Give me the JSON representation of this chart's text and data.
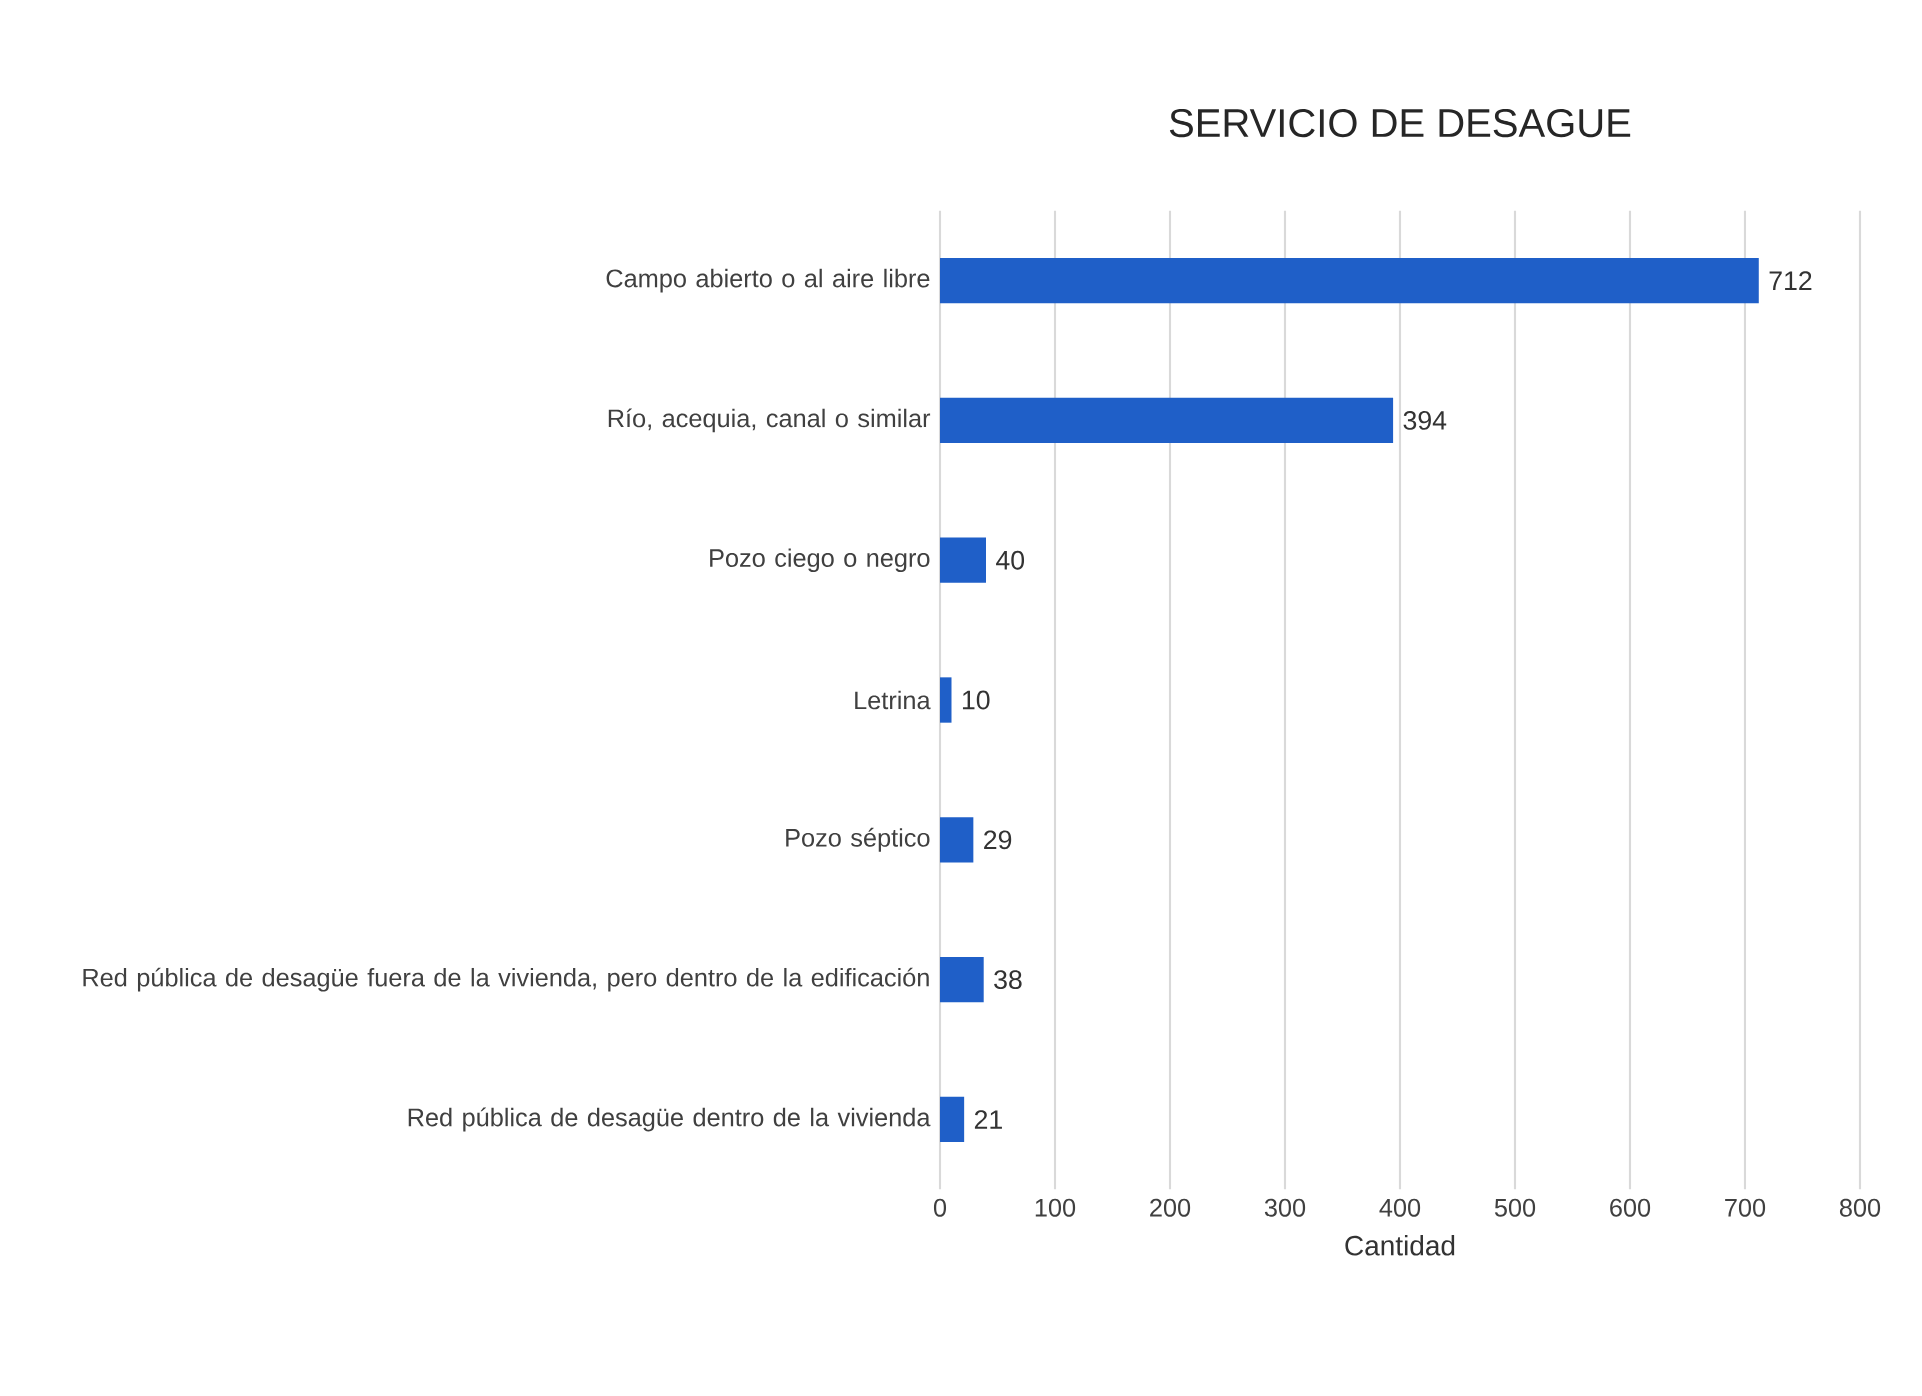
{
  "chart_data": {
    "type": "bar",
    "orientation": "horizontal",
    "title": "SERVICIO DE DESAGUE",
    "xlabel": "Cantidad",
    "categories": [
      "Campo abierto o al aire libre",
      "Río, acequia, canal o similar",
      "Pozo ciego o negro",
      "Letrina",
      "Pozo séptico",
      "Red pública de desagüe fuera de la vivienda, pero dentro de la edificación",
      "Red pública de desagüe dentro de la vivienda"
    ],
    "values": [
      712,
      394,
      40,
      10,
      29,
      38,
      21
    ],
    "color": "#1f5fc8",
    "xlim": [
      0,
      800
    ],
    "xticks": [
      0,
      100,
      200,
      300,
      400,
      500,
      600,
      700,
      800
    ],
    "grid": "x",
    "data_labels": true
  }
}
